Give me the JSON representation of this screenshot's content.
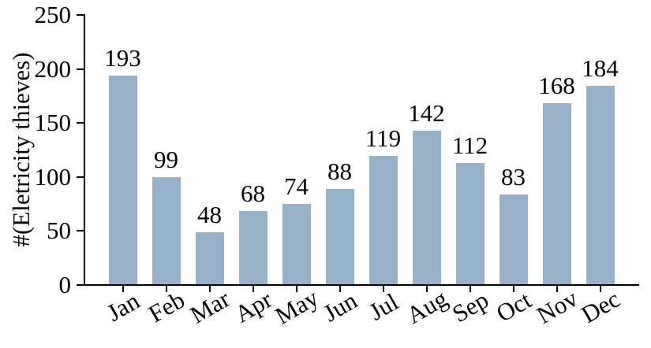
{
  "chart_data": {
    "type": "bar",
    "title": "",
    "xlabel": "",
    "ylabel": "#(Eletricity thieves)",
    "categories": [
      "Jan",
      "Feb",
      "Mar",
      "Apr",
      "May",
      "Jun",
      "Jul",
      "Aug",
      "Sep",
      "Oct",
      "Nov",
      "Dec"
    ],
    "values": [
      193,
      99,
      48,
      68,
      74,
      88,
      119,
      142,
      112,
      83,
      168,
      184
    ],
    "ylim": [
      0,
      250
    ],
    "yticks": [
      0,
      50,
      100,
      150,
      200,
      250
    ],
    "x_tick_rotation_deg": 30,
    "grid": false,
    "legend": false,
    "value_labels_shown": true,
    "bar_color": "#98b1cb",
    "axis_color": "#000000",
    "text_color": "#000000",
    "background_color": "#ffffff"
  }
}
